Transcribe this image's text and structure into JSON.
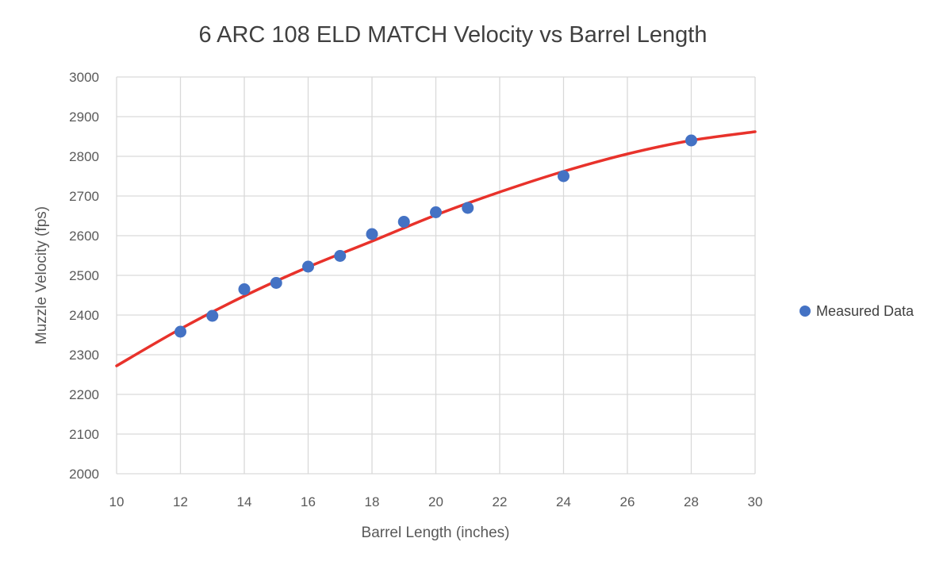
{
  "chart_data": {
    "type": "scatter",
    "title": "6 ARC 108 ELD MATCH Velocity vs Barrel Length",
    "xlabel": "Barrel Length (inches)",
    "ylabel": "Muzzle Velocity (fps)",
    "xlim": [
      10,
      30
    ],
    "ylim": [
      2000,
      3000
    ],
    "x_ticks": [
      "10",
      "12",
      "14",
      "16",
      "18",
      "20",
      "22",
      "24",
      "26",
      "28",
      "30"
    ],
    "y_ticks": [
      "2000",
      "2100",
      "2200",
      "2300",
      "2400",
      "2500",
      "2600",
      "2700",
      "2800",
      "2900",
      "3000"
    ],
    "grid": true,
    "legend_position": "right",
    "series": [
      {
        "name": "Measured Data",
        "color": "#4472C4",
        "x": [
          12,
          13,
          14,
          15,
          16,
          17,
          18,
          19,
          20,
          21,
          24,
          28
        ],
        "y": [
          2358,
          2398,
          2465,
          2481,
          2522,
          2549,
          2604,
          2635,
          2659,
          2670,
          2750,
          2840
        ]
      }
    ],
    "trendline": {
      "type": "polynomial",
      "color": "#E8322B",
      "x": [
        10,
        12,
        14,
        16,
        18,
        20,
        22,
        24,
        26,
        28,
        30
      ],
      "y": [
        2272,
        2365,
        2448,
        2521,
        2586,
        2652,
        2710,
        2762,
        2806,
        2840,
        2862
      ]
    }
  }
}
